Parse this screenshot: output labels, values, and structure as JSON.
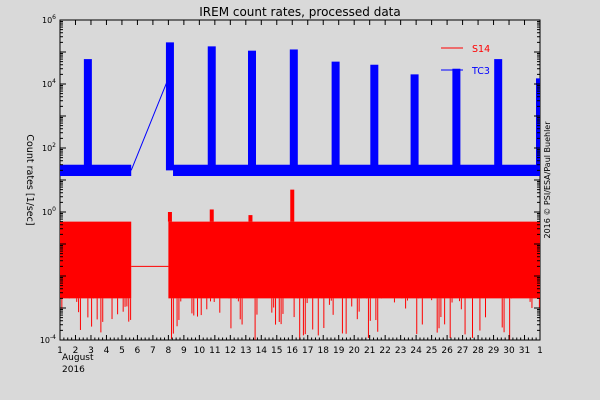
{
  "chart_data": {
    "type": "line",
    "title": "IREM count rates, processed data",
    "ylabel": "Count rates [1/sec]",
    "credit": "2016 © PSI/ESA/Paul Buehler",
    "xaxis": {
      "ticks": [
        "1",
        "2",
        "3",
        "4",
        "5",
        "6",
        "7",
        "8",
        "9",
        "10",
        "11",
        "12",
        "13",
        "14",
        "15",
        "16",
        "17",
        "18",
        "19",
        "20",
        "21",
        "22",
        "23",
        "24",
        "25",
        "26",
        "27",
        "28",
        "29",
        "30",
        "31",
        "1"
      ],
      "month_label": "August",
      "year_label": "2016",
      "range_days": [
        1,
        32
      ]
    },
    "yaxis": {
      "scale": "log",
      "ylim": [
        0.0001,
        1000000
      ],
      "ticks": [
        {
          "value": 0.0001,
          "base": "10",
          "exp": "-4"
        },
        {
          "value": 1,
          "base": "10",
          "exp": "0"
        },
        {
          "value": 100,
          "base": "10",
          "exp": "2"
        },
        {
          "value": 10000,
          "base": "10",
          "exp": "4"
        },
        {
          "value": 1000000,
          "base": "10",
          "exp": "6"
        }
      ]
    },
    "legend": {
      "placement": "top-right"
    },
    "series": [
      {
        "name": "S14",
        "color": "#ff0000",
        "baseline": 0.015,
        "noise_low": 0.0001,
        "noise_high": 0.5,
        "data_gap_days": [
          5.6,
          8.0
        ],
        "gap_value": 0.02,
        "spikes": [
          {
            "day": 8.1,
            "value": 1.0
          },
          {
            "day": 10.8,
            "value": 1.2
          },
          {
            "day": 13.3,
            "value": 0.8
          },
          {
            "day": 16.0,
            "value": 5.0
          },
          {
            "day": 18.6,
            "value": 0.3
          },
          {
            "day": 21.4,
            "value": 0.3
          },
          {
            "day": 24.0,
            "value": 0.3
          }
        ]
      },
      {
        "name": "TC3",
        "color": "#0000ff",
        "baseline": 20,
        "peaks": [
          {
            "day": 2.8,
            "value": 60000
          },
          {
            "day": 8.1,
            "value": 200000
          },
          {
            "day": 10.8,
            "value": 150000
          },
          {
            "day": 13.4,
            "value": 110000
          },
          {
            "day": 16.1,
            "value": 120000
          },
          {
            "day": 18.8,
            "value": 50000
          },
          {
            "day": 21.3,
            "value": 40000
          },
          {
            "day": 23.9,
            "value": 20000
          },
          {
            "day": 26.6,
            "value": 30000
          },
          {
            "day": 29.3,
            "value": 60000
          },
          {
            "day": 32.0,
            "value": 15000
          }
        ],
        "ramp": {
          "from_day": 5.6,
          "from_value": 20,
          "to_day": 8.0,
          "to_value": 15000
        }
      }
    ]
  }
}
